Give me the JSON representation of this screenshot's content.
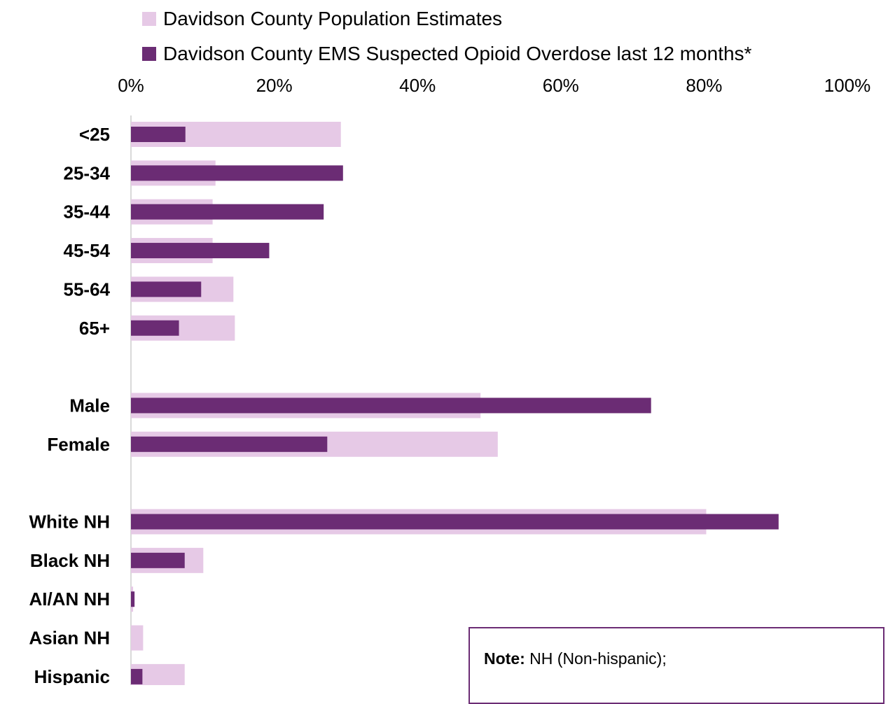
{
  "colors": {
    "population": "#e6c9e6",
    "ems": "#6b2c74",
    "axis": "#d9d9d9",
    "note_border": "#6b2c74"
  },
  "note": {
    "label": "Note:",
    "text": " NH (Non-hispanic);"
  },
  "chart_data": {
    "type": "bar",
    "orientation": "horizontal",
    "title": "",
    "xlabel": "",
    "ylabel": "",
    "xlim": [
      0,
      100
    ],
    "x_ticks": [
      "0%",
      "20%",
      "40%",
      "60%",
      "80%",
      "100%"
    ],
    "legend_position": "top",
    "grid": false,
    "categories": [
      "<25",
      "25-34",
      "35-44",
      "45-54",
      "55-64",
      "65+",
      "Male",
      "Female",
      "White NH",
      "Black NH",
      "AI/AN NH",
      "Asian NH",
      "Hispanic"
    ],
    "category_groups": [
      [
        0,
        1,
        2,
        3,
        4,
        5
      ],
      [
        6,
        7
      ],
      [
        8,
        9,
        10,
        11,
        12
      ]
    ],
    "series": [
      {
        "name": "Davidson County Population Estimates",
        "values": [
          29.3,
          11.8,
          11.4,
          11.4,
          14.3,
          14.5,
          48.8,
          51.2,
          80.3,
          10.1,
          0.3,
          1.7,
          7.5
        ]
      },
      {
        "name": "Davidson County EMS Suspected Opioid Overdose last 12 months*",
        "values": [
          7.6,
          29.6,
          26.9,
          19.3,
          9.8,
          6.7,
          72.6,
          27.4,
          90.4,
          7.5,
          0.5,
          0.0,
          1.6
        ]
      }
    ]
  }
}
